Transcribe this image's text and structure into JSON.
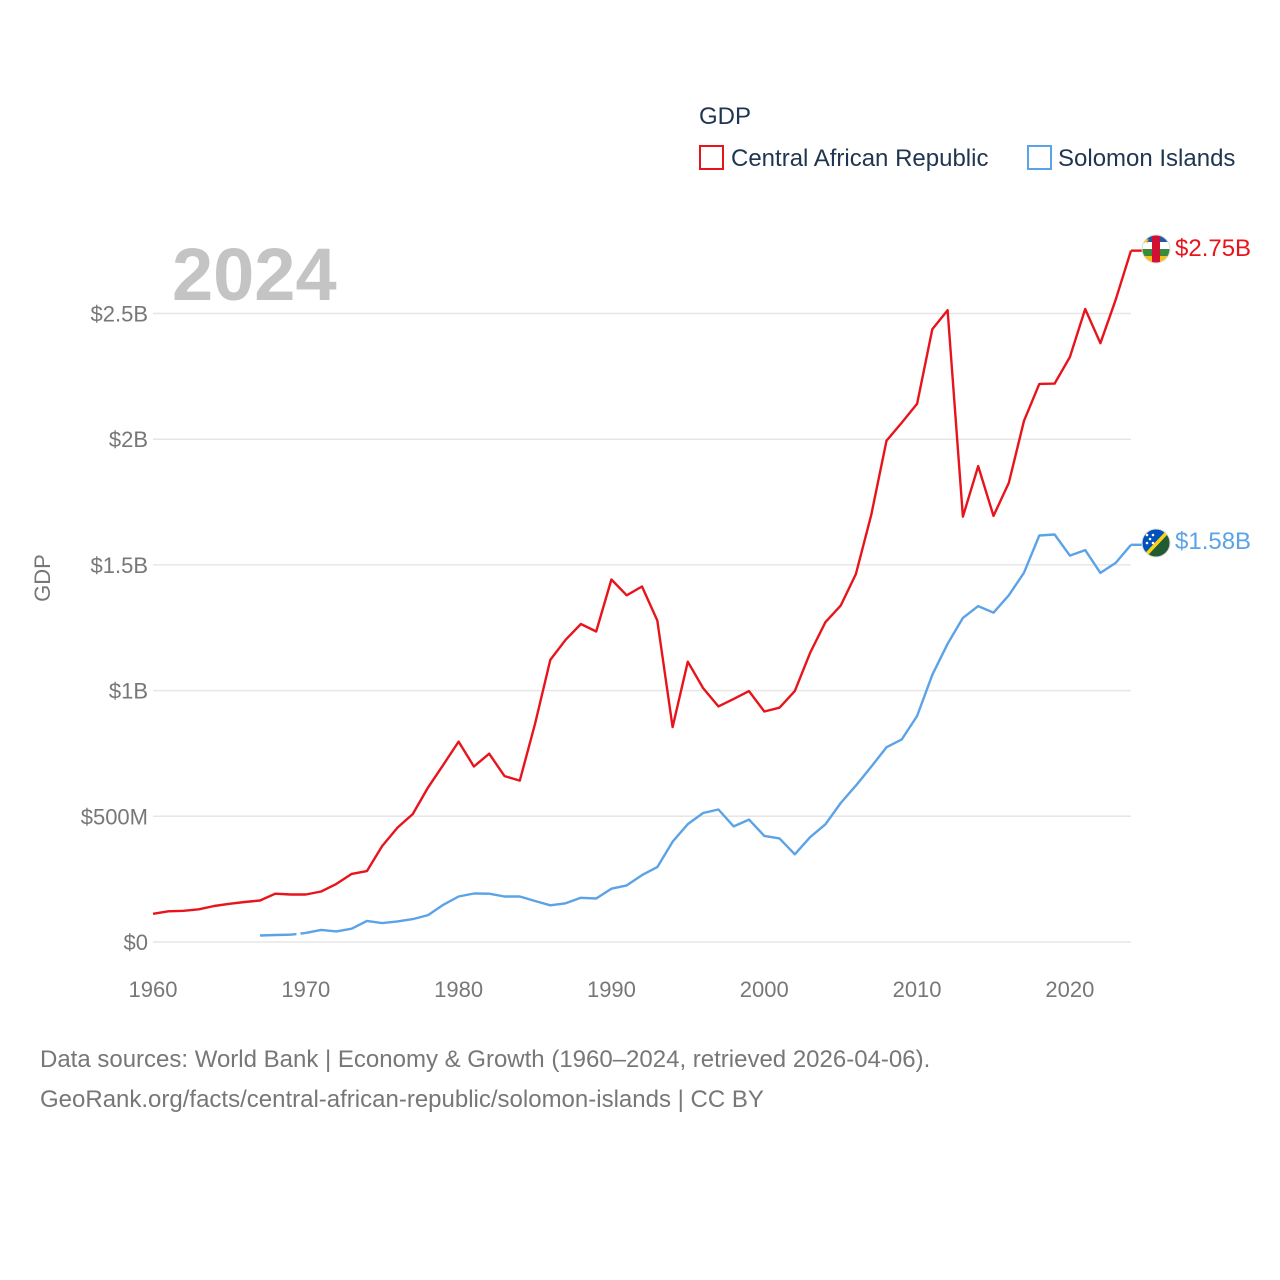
{
  "chart_data": {
    "type": "line",
    "year_label": "2024",
    "ylabel": "GDP",
    "legend_title": "GDP",
    "ylim": [
      0,
      2750000000
    ],
    "y_ticks": [
      {
        "value": 0,
        "label": "$0"
      },
      {
        "value": 500000000,
        "label": "$500M"
      },
      {
        "value": 1000000000,
        "label": "$1B"
      },
      {
        "value": 1500000000,
        "label": "$1.5B"
      },
      {
        "value": 2000000000,
        "label": "$2B"
      },
      {
        "value": 2500000000,
        "label": "$2.5B"
      }
    ],
    "xlim": [
      1960,
      2024
    ],
    "x_ticks": [
      {
        "value": 1960,
        "label": "1960"
      },
      {
        "value": 1970,
        "label": "1970"
      },
      {
        "value": 1980,
        "label": "1980"
      },
      {
        "value": 1990,
        "label": "1990"
      },
      {
        "value": 2000,
        "label": "2000"
      },
      {
        "value": 2010,
        "label": "2010"
      },
      {
        "value": 2020,
        "label": "2020"
      }
    ],
    "series": [
      {
        "name": "Central African Republic",
        "color": "#e8141c",
        "end_label": "$2.75B",
        "flag_icon": "central-african-republic-flag-icon",
        "x": [
          1960,
          1961,
          1962,
          1963,
          1964,
          1965,
          1966,
          1967,
          1968,
          1969,
          1970,
          1971,
          1972,
          1973,
          1974,
          1975,
          1976,
          1977,
          1978,
          1979,
          1980,
          1981,
          1982,
          1983,
          1984,
          1985,
          1986,
          1987,
          1988,
          1989,
          1990,
          1991,
          1992,
          1993,
          1994,
          1995,
          1996,
          1997,
          1998,
          1999,
          2000,
          2001,
          2002,
          2003,
          2004,
          2005,
          2006,
          2007,
          2008,
          2009,
          2010,
          2011,
          2012,
          2013,
          2014,
          2015,
          2016,
          2017,
          2018,
          2019,
          2020,
          2021,
          2022,
          2023,
          2024
        ],
        "values": [
          112000000,
          122000000,
          124000000,
          130000000,
          143000000,
          152000000,
          159000000,
          165000000,
          192000000,
          189000000,
          189000000,
          201000000,
          231000000,
          271000000,
          282000000,
          382000000,
          455000000,
          509000000,
          615000000,
          705000000,
          797000000,
          698000000,
          749000000,
          660000000,
          642000000,
          867000000,
          1122000000,
          1202000000,
          1265000000,
          1235000000,
          1442000000,
          1379000000,
          1414000000,
          1279000000,
          855000000,
          1115000000,
          1010000000,
          937000000,
          967000000,
          998000000,
          917000000,
          932000000,
          998000000,
          1150000000,
          1272000000,
          1338000000,
          1464000000,
          1698000000,
          1994000000,
          2066000000,
          2141000000,
          2437000000,
          2513000000,
          1692000000,
          1893000000,
          1695000000,
          1826000000,
          2073000000,
          2220000000,
          2221000000,
          2327000000,
          2518000000,
          2382000000,
          2555000000,
          2750000000
        ]
      },
      {
        "name": "Solomon Islands",
        "color": "#5ba3e6",
        "end_label": "$1.58B",
        "flag_icon": "solomon-islands-flag-icon",
        "x": [
          1967,
          1968,
          1969,
          1970,
          1971,
          1972,
          1973,
          1974,
          1975,
          1976,
          1977,
          1978,
          1979,
          1980,
          1981,
          1982,
          1983,
          1984,
          1985,
          1986,
          1987,
          1988,
          1989,
          1990,
          1991,
          1992,
          1993,
          1994,
          1995,
          1996,
          1997,
          1998,
          1999,
          2000,
          2001,
          2002,
          2003,
          2004,
          2005,
          2006,
          2007,
          2008,
          2009,
          2010,
          2011,
          2012,
          2013,
          2014,
          2015,
          2016,
          2017,
          2018,
          2019,
          2020,
          2021,
          2022,
          2023,
          2024
        ],
        "values": [
          26000000,
          28000000,
          29000000,
          36000000,
          48000000,
          42000000,
          53000000,
          84000000,
          75000000,
          82000000,
          91000000,
          107000000,
          148000000,
          181000000,
          193000000,
          192000000,
          181000000,
          181000000,
          163000000,
          146000000,
          154000000,
          176000000,
          173000000,
          212000000,
          225000000,
          266000000,
          298000000,
          399000000,
          469000000,
          513000000,
          527000000,
          460000000,
          487000000,
          422000000,
          412000000,
          349000000,
          417000000,
          468000000,
          553000000,
          622000000,
          697000000,
          775000000,
          806000000,
          899000000,
          1063000000,
          1186000000,
          1289000000,
          1336000000,
          1310000000,
          1379000000,
          1469000000,
          1617000000,
          1621000000,
          1537000000,
          1559000000,
          1468000000,
          1508000000,
          1580000000
        ],
        "gaps_after": [
          1969
        ]
      }
    ]
  },
  "footer": {
    "line1": "Data sources: World Bank | Economy & Growth (1960–2024, retrieved 2026-04-06).",
    "line2": "GeoRank.org/facts/central-african-republic/solomon-islands | CC BY"
  }
}
